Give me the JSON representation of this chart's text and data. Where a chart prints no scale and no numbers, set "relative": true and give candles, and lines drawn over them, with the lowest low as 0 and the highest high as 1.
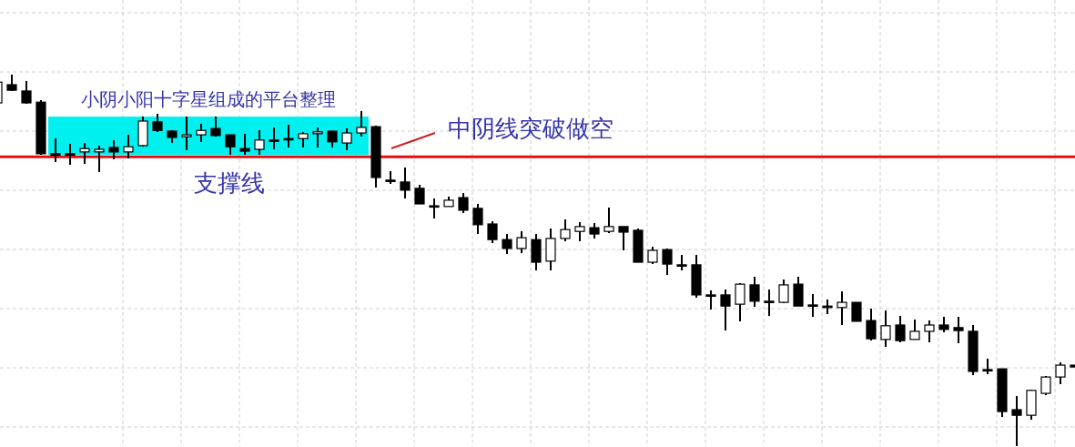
{
  "chart_data": {
    "type": "candlestick",
    "relative": true,
    "grid": true,
    "categories": [
      null,
      null,
      null,
      null,
      null,
      null,
      null,
      null,
      null,
      null,
      null,
      null,
      null,
      null,
      null,
      null,
      null,
      null,
      null,
      null,
      null,
      null,
      null,
      null,
      null,
      null,
      null,
      null,
      null,
      null,
      null,
      null,
      null,
      null,
      null,
      null,
      null,
      null,
      null,
      null,
      null,
      null,
      null,
      null,
      null,
      null,
      null,
      null,
      null,
      null,
      null,
      null,
      null,
      null,
      null,
      null,
      null,
      null,
      null,
      null,
      null,
      null,
      null,
      null,
      null,
      null,
      null,
      null,
      null,
      null,
      null,
      null,
      null,
      null,
      null
    ],
    "ohlc": [
      [
        0.924,
        0.98,
        0.924,
        0.98
      ],
      [
        0.973,
        1.0,
        0.956,
        0.958
      ],
      [
        0.956,
        0.983,
        0.922,
        0.924
      ],
      [
        0.926,
        0.931,
        0.784,
        0.787
      ],
      [
        0.787,
        0.828,
        0.765,
        0.787
      ],
      [
        0.787,
        0.814,
        0.757,
        0.787
      ],
      [
        0.792,
        0.816,
        0.76,
        0.801
      ],
      [
        0.792,
        0.809,
        0.738,
        0.799
      ],
      [
        0.804,
        0.824,
        0.772,
        0.792
      ],
      [
        0.792,
        0.838,
        0.775,
        0.806
      ],
      [
        0.809,
        0.887,
        0.806,
        0.875
      ],
      [
        0.873,
        0.895,
        0.846,
        0.85
      ],
      [
        0.848,
        0.85,
        0.816,
        0.831
      ],
      [
        0.833,
        0.887,
        0.797,
        0.838
      ],
      [
        0.838,
        0.868,
        0.819,
        0.85
      ],
      [
        0.855,
        0.887,
        0.833,
        0.836
      ],
      [
        0.838,
        0.838,
        0.784,
        0.806
      ],
      [
        0.801,
        0.841,
        0.784,
        0.794
      ],
      [
        0.799,
        0.85,
        0.784,
        0.824
      ],
      [
        0.824,
        0.858,
        0.799,
        0.824
      ],
      [
        0.828,
        0.865,
        0.804,
        0.826
      ],
      [
        0.828,
        0.846,
        0.804,
        0.841
      ],
      [
        0.841,
        0.858,
        0.804,
        0.846
      ],
      [
        0.848,
        0.848,
        0.804,
        0.819
      ],
      [
        0.816,
        0.855,
        0.797,
        0.843
      ],
      [
        0.843,
        0.902,
        0.833,
        0.858
      ],
      [
        0.86,
        0.863,
        0.696,
        0.723
      ],
      [
        0.716,
        0.74,
        0.706,
        0.716
      ],
      [
        0.711,
        0.75,
        0.667,
        0.689
      ],
      [
        0.694,
        0.703,
        0.652,
        0.652
      ],
      [
        0.647,
        0.667,
        0.613,
        0.647
      ],
      [
        0.645,
        0.672,
        0.645,
        0.662
      ],
      [
        0.669,
        0.681,
        0.627,
        0.635
      ],
      [
        0.64,
        0.652,
        0.571,
        0.596
      ],
      [
        0.598,
        0.605,
        0.547,
        0.556
      ],
      [
        0.556,
        0.571,
        0.517,
        0.532
      ],
      [
        0.532,
        0.578,
        0.52,
        0.561
      ],
      [
        0.556,
        0.571,
        0.473,
        0.495
      ],
      [
        0.498,
        0.586,
        0.473,
        0.559
      ],
      [
        0.559,
        0.61,
        0.551,
        0.583
      ],
      [
        0.578,
        0.603,
        0.551,
        0.591
      ],
      [
        0.588,
        0.6,
        0.559,
        0.571
      ],
      [
        0.578,
        0.642,
        0.574,
        0.591
      ],
      [
        0.591,
        0.591,
        0.527,
        0.576
      ],
      [
        0.581,
        0.586,
        0.495,
        0.495
      ],
      [
        0.495,
        0.537,
        0.49,
        0.527
      ],
      [
        0.529,
        0.532,
        0.461,
        0.49
      ],
      [
        0.488,
        0.515,
        0.473,
        0.488
      ],
      [
        0.488,
        0.515,
        0.4,
        0.407
      ],
      [
        0.407,
        0.419,
        0.368,
        0.407
      ],
      [
        0.407,
        0.422,
        0.311,
        0.377
      ],
      [
        0.382,
        0.439,
        0.336,
        0.436
      ],
      [
        0.434,
        0.456,
        0.375,
        0.39
      ],
      [
        0.39,
        0.422,
        0.35,
        0.39
      ],
      [
        0.387,
        0.449,
        0.385,
        0.434
      ],
      [
        0.436,
        0.456,
        0.377,
        0.377
      ],
      [
        0.38,
        0.409,
        0.348,
        0.38
      ],
      [
        0.377,
        0.395,
        0.355,
        0.373
      ],
      [
        0.373,
        0.417,
        0.326,
        0.387
      ],
      [
        0.387,
        0.387,
        0.336,
        0.336
      ],
      [
        0.338,
        0.37,
        0.284,
        0.289
      ],
      [
        0.287,
        0.365,
        0.267,
        0.324
      ],
      [
        0.326,
        0.35,
        0.279,
        0.284
      ],
      [
        0.287,
        0.341,
        0.287,
        0.309
      ],
      [
        0.309,
        0.338,
        0.279,
        0.326
      ],
      [
        0.326,
        0.348,
        0.306,
        0.314
      ],
      [
        0.319,
        0.348,
        0.277,
        0.311
      ],
      [
        0.309,
        0.326,
        0.191,
        0.201
      ],
      [
        0.206,
        0.235,
        0.194,
        0.206
      ],
      [
        0.208,
        0.208,
        0.078,
        0.093
      ],
      [
        0.098,
        0.135,
        0.0,
        0.083
      ],
      [
        0.083,
        0.152,
        0.071,
        0.15
      ],
      [
        0.142,
        0.189,
        0.137,
        0.186
      ],
      [
        0.186,
        0.225,
        0.167,
        0.218
      ],
      [
        0.218,
        0.218,
        0.213,
        0.213
      ]
    ],
    "ref_lines": [
      {
        "axis": "y",
        "value": 0.779,
        "color": "#e01010"
      }
    ],
    "bands": [
      {
        "axis": "y",
        "from": 0.784,
        "to": 0.887,
        "color": "#00f0f0",
        "label": "小阴小阳十字星组成的平台整理"
      }
    ],
    "annotations": [
      "中阴线突破做空",
      "支撑线"
    ]
  }
}
